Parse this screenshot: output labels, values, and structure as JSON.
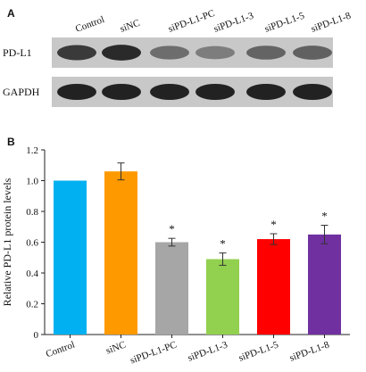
{
  "panel_a": {
    "letter": "A",
    "lanes": [
      "Control",
      "siNC",
      "siPD-L1-PC",
      "siPD-L1-3",
      "siPD-L1-5",
      "siPD-L1-8"
    ],
    "rows": [
      {
        "label": "PD-L1",
        "band_intensity": [
          0.85,
          0.95,
          0.55,
          0.45,
          0.6,
          0.62
        ]
      },
      {
        "label": "GAPDH",
        "band_intensity": [
          1.0,
          1.0,
          1.0,
          1.0,
          1.0,
          1.0
        ]
      }
    ]
  },
  "panel_b": {
    "letter": "B"
  },
  "chart_data": {
    "type": "bar",
    "categories": [
      "Control",
      "siNC",
      "siPD-L1-PC",
      "siPD-L1-3",
      "siPD-L1-5",
      "siPD-L1-8"
    ],
    "values": [
      1.0,
      1.06,
      0.6,
      0.49,
      0.62,
      0.65
    ],
    "errors": [
      0.0,
      0.055,
      0.025,
      0.04,
      0.035,
      0.06
    ],
    "significance": [
      "",
      "",
      "*",
      "*",
      "*",
      "*"
    ],
    "colors": [
      "#00b0f0",
      "#ff9900",
      "#a6a6a6",
      "#92d050",
      "#ff0000",
      "#7030a0"
    ],
    "ylabel": "Relative PD-L1 protein levels",
    "xlabel": "",
    "ylim": [
      0,
      1.2
    ],
    "yticks": [
      "0",
      "0.2",
      "0.4",
      "0.6",
      "0.8",
      "1.0",
      "1.2"
    ],
    "grid": false
  }
}
